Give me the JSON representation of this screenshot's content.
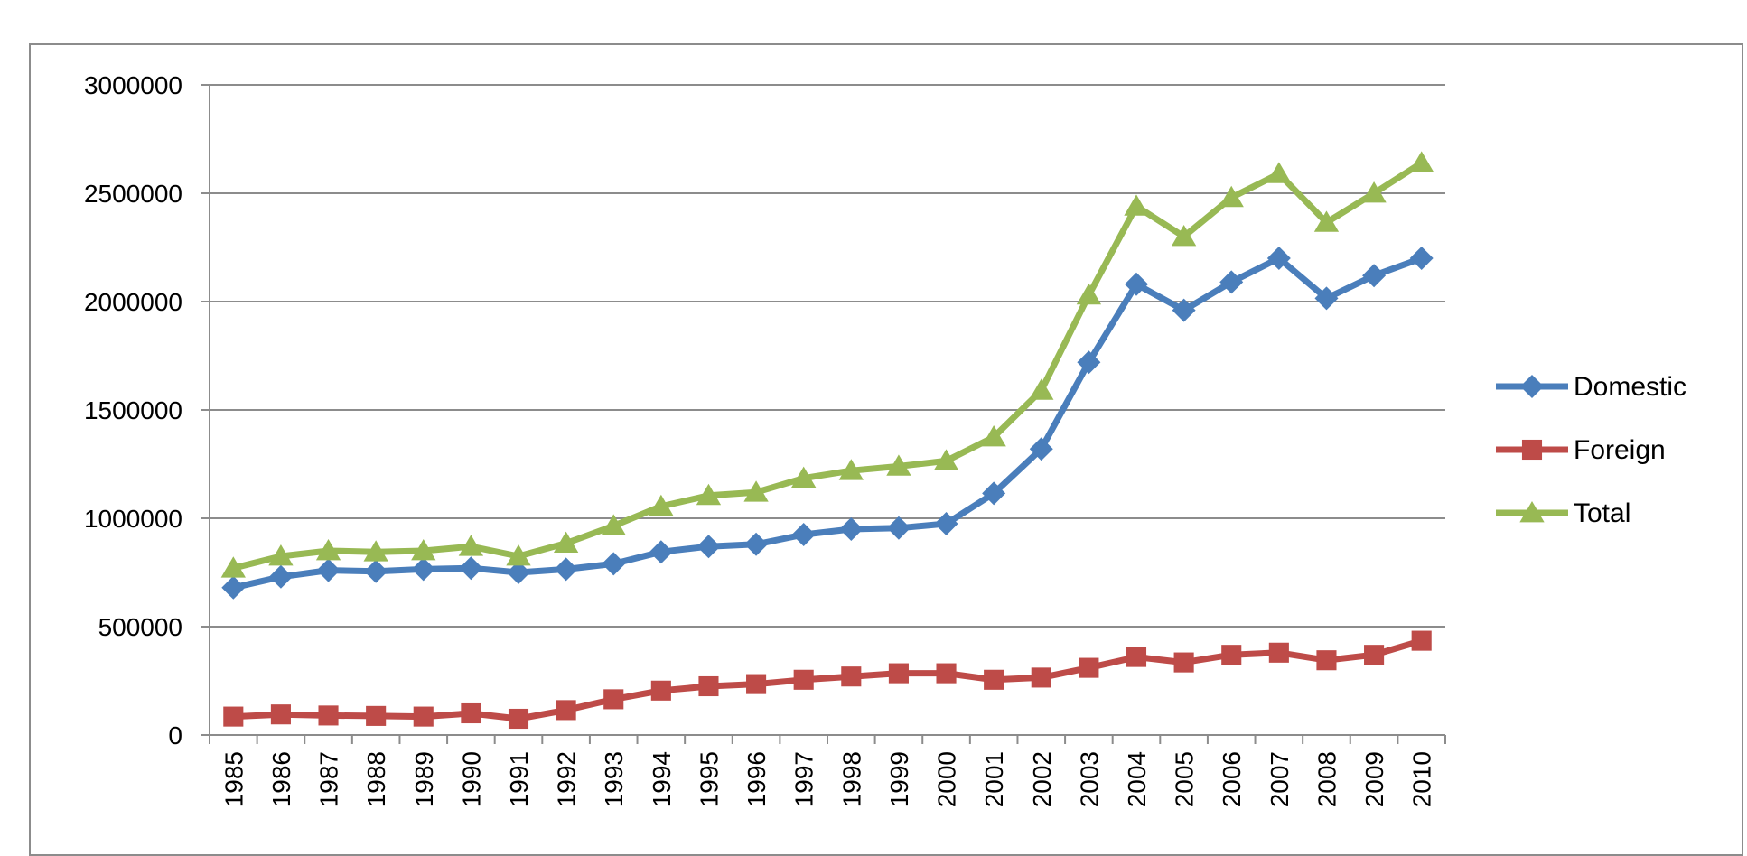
{
  "chart_data": {
    "type": "line",
    "title": "",
    "xlabel": "",
    "ylabel": "",
    "ylim": [
      0,
      3000000
    ],
    "y_ticks": [
      "0",
      "500000",
      "1000000",
      "1500000",
      "2000000",
      "2500000",
      "3000000"
    ],
    "y_tick_values": [
      0,
      500000,
      1000000,
      1500000,
      2000000,
      2500000,
      3000000
    ],
    "grid": true,
    "legend_position": "right",
    "categories": [
      "1985",
      "1986",
      "1987",
      "1988",
      "1989",
      "1990",
      "1991",
      "1992",
      "1993",
      "1994",
      "1995",
      "1996",
      "1997",
      "1998",
      "1999",
      "2000",
      "2001",
      "2002",
      "2003",
      "2004",
      "2005",
      "2006",
      "2007",
      "2008",
      "2009",
      "2010"
    ],
    "series": [
      {
        "name": "Domestic",
        "color": "#4a7ebb",
        "marker": "diamond",
        "values": [
          680000,
          730000,
          760000,
          755000,
          765000,
          770000,
          750000,
          765000,
          790000,
          845000,
          870000,
          880000,
          925000,
          950000,
          955000,
          975000,
          1115000,
          1320000,
          1720000,
          2080000,
          1960000,
          2090000,
          2200000,
          2015000,
          2120000,
          2200000
        ]
      },
      {
        "name": "Foreign",
        "color": "#be4b48",
        "marker": "square",
        "values": [
          85000,
          95000,
          90000,
          88000,
          85000,
          100000,
          75000,
          115000,
          165000,
          205000,
          225000,
          235000,
          255000,
          270000,
          285000,
          285000,
          255000,
          265000,
          310000,
          360000,
          335000,
          370000,
          380000,
          345000,
          370000,
          435000
        ]
      },
      {
        "name": "Total",
        "color": "#98b954",
        "marker": "triangle",
        "values": [
          770000,
          825000,
          850000,
          845000,
          850000,
          870000,
          825000,
          885000,
          965000,
          1055000,
          1105000,
          1120000,
          1185000,
          1220000,
          1240000,
          1265000,
          1375000,
          1590000,
          2030000,
          2440000,
          2300000,
          2480000,
          2590000,
          2365000,
          2500000,
          2640000
        ]
      }
    ]
  }
}
